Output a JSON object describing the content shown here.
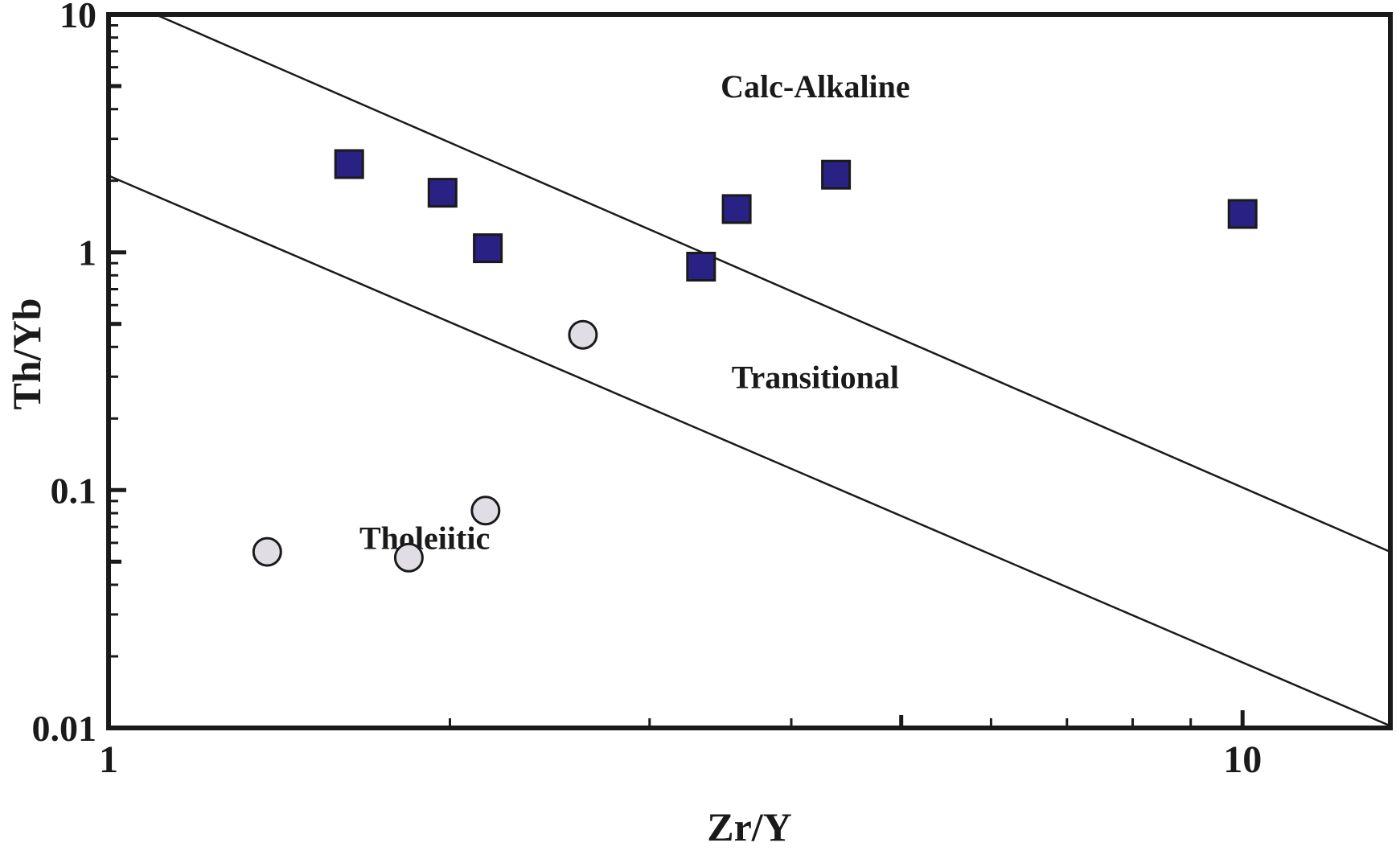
{
  "chart_data": {
    "type": "scatter",
    "title": "",
    "xlabel": "Zr/Y",
    "ylabel": "Th/Yb",
    "xscale": "log",
    "yscale": "log",
    "xlim": [
      1,
      13.5
    ],
    "ylim": [
      0.01,
      10
    ],
    "grid": false,
    "x_tick_labels": [
      {
        "value": 1,
        "label": "1"
      },
      {
        "value": 10,
        "label": "10"
      }
    ],
    "y_tick_labels": [
      {
        "value": 0.01,
        "label": "0.01"
      },
      {
        "value": 0.1,
        "label": "0.1"
      },
      {
        "value": 1,
        "label": "1"
      },
      {
        "value": 10,
        "label": "10"
      }
    ],
    "boundary_lines": [
      {
        "name": "calc-alkaline-transitional-boundary",
        "points": [
          [
            1.1,
            10
          ],
          [
            13.5,
            0.055
          ]
        ]
      },
      {
        "name": "transitional-tholeiitic-boundary",
        "points": [
          [
            1,
            2.1
          ],
          [
            13.5,
            0.0102
          ]
        ]
      }
    ],
    "region_labels": [
      {
        "text": "Calc-Alkaline",
        "x": 4.2,
        "y": 5.0
      },
      {
        "text": "Transitional",
        "x": 4.2,
        "y": 0.3
      },
      {
        "text": "Tholeiitic",
        "x": 1.9,
        "y": 0.063
      }
    ],
    "series": [
      {
        "name": "squares",
        "marker": "square",
        "color": "#2a2185",
        "points": [
          {
            "x": 1.63,
            "y": 2.35
          },
          {
            "x": 1.97,
            "y": 1.78
          },
          {
            "x": 2.16,
            "y": 1.04
          },
          {
            "x": 3.33,
            "y": 0.87
          },
          {
            "x": 3.58,
            "y": 1.52
          },
          {
            "x": 4.38,
            "y": 2.12
          },
          {
            "x": 10.0,
            "y": 1.45
          }
        ]
      },
      {
        "name": "circles",
        "marker": "circle",
        "color": "#e1dde5",
        "points": [
          {
            "x": 1.38,
            "y": 0.055
          },
          {
            "x": 1.84,
            "y": 0.052
          },
          {
            "x": 2.15,
            "y": 0.082
          },
          {
            "x": 2.62,
            "y": 0.45
          }
        ]
      }
    ]
  }
}
